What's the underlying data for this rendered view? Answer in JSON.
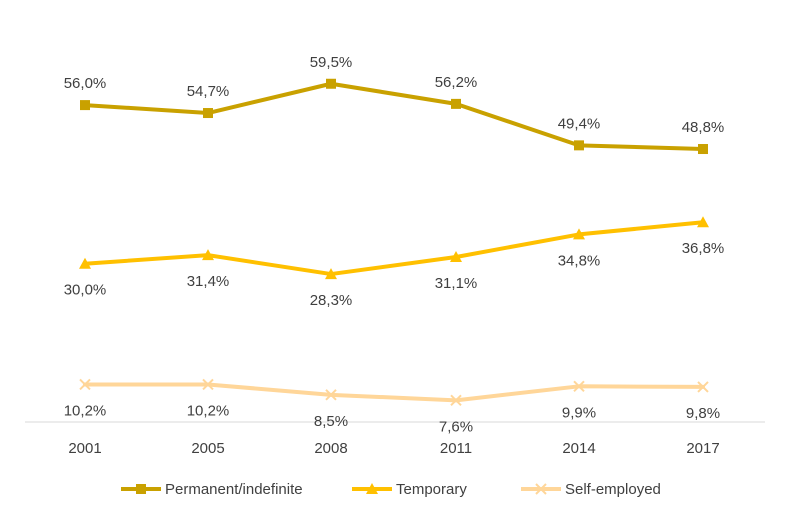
{
  "chart_data": {
    "type": "line",
    "title": "",
    "xlabel": "",
    "ylabel": "",
    "ylim": [
      0,
      65
    ],
    "grid": false,
    "legend_position": "bottom",
    "categories": [
      "2001",
      "2005",
      "2008",
      "2011",
      "2014",
      "2017"
    ],
    "series": [
      {
        "name": "Permanent/indefinite",
        "marker": "square",
        "color": "#C9A100",
        "values": [
          56.0,
          54.7,
          59.5,
          56.2,
          49.4,
          48.8
        ],
        "labels": [
          "56,0%",
          "54,7%",
          "59,5%",
          "56,2%",
          "49,4%",
          "48,8%"
        ],
        "label_position": "above"
      },
      {
        "name": "Temporary",
        "marker": "triangle",
        "color": "#FFC000",
        "values": [
          30.0,
          31.4,
          28.3,
          31.1,
          34.8,
          36.8
        ],
        "labels": [
          "30,0%",
          "31,4%",
          "28,3%",
          "31,1%",
          "34,8%",
          "36,8%"
        ],
        "label_position": "below"
      },
      {
        "name": "Self-employed",
        "marker": "x",
        "color": "#FFD699",
        "values": [
          10.2,
          10.2,
          8.5,
          7.6,
          9.9,
          9.8
        ],
        "labels": [
          "10,2%",
          "10,2%",
          "8,5%",
          "7,6%",
          "9,9%",
          "9,8%"
        ],
        "label_position": "below"
      }
    ]
  }
}
